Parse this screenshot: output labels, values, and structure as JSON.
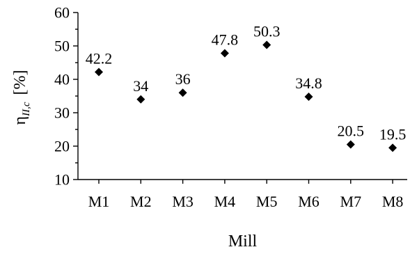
{
  "chart_data": {
    "type": "scatter",
    "categories": [
      "M1",
      "M2",
      "M3",
      "M4",
      "M5",
      "M6",
      "M7",
      "M8"
    ],
    "values": [
      42.2,
      34,
      36,
      47.8,
      50.3,
      34.8,
      20.5,
      19.5
    ],
    "data_labels": [
      "42.2",
      "34",
      "36",
      "47.8",
      "50.3",
      "34.8",
      "20.5",
      "19.5"
    ],
    "xlabel": "Mill",
    "ylabel": {
      "symbol": "η",
      "subscript": "II,c",
      "unit": "[%]"
    },
    "ylim": [
      10,
      60
    ],
    "yticks": [
      10,
      20,
      30,
      40,
      50,
      60
    ],
    "marker": "diamond",
    "marker_color": "#000000",
    "grid": false
  }
}
